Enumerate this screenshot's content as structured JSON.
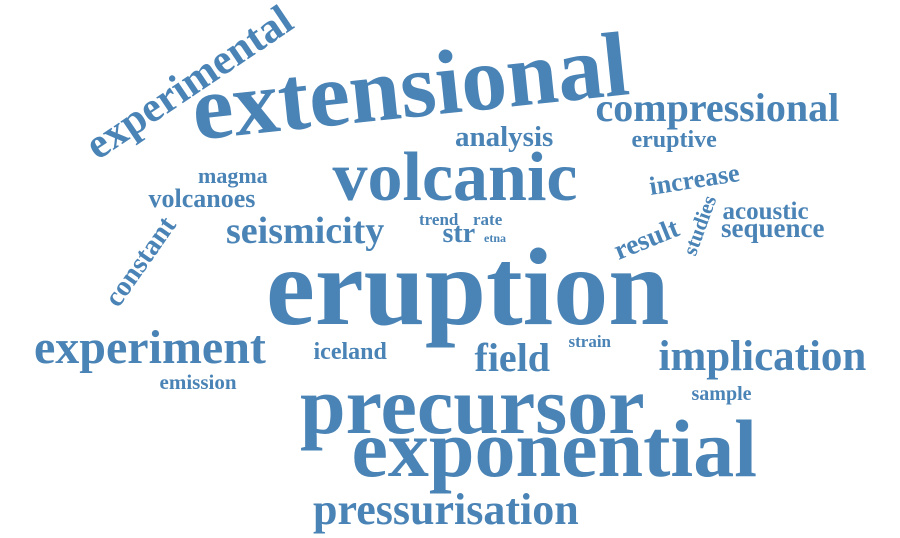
{
  "cloud": {
    "color": "#4a83b5",
    "words": [
      "eruption",
      "extensional",
      "volcanic",
      "precursor",
      "exponential",
      "experiment",
      "compressional",
      "implication",
      "pressurisation",
      "field",
      "seismicity",
      "experimental",
      "analysis",
      "volcanoes",
      "iceland",
      "increase",
      "result",
      "sequence",
      "acoustic",
      "constant",
      "eruptive",
      "emission",
      "magma",
      "str",
      "studies",
      "sample",
      "trend",
      "rate",
      "strain",
      "etna"
    ]
  }
}
